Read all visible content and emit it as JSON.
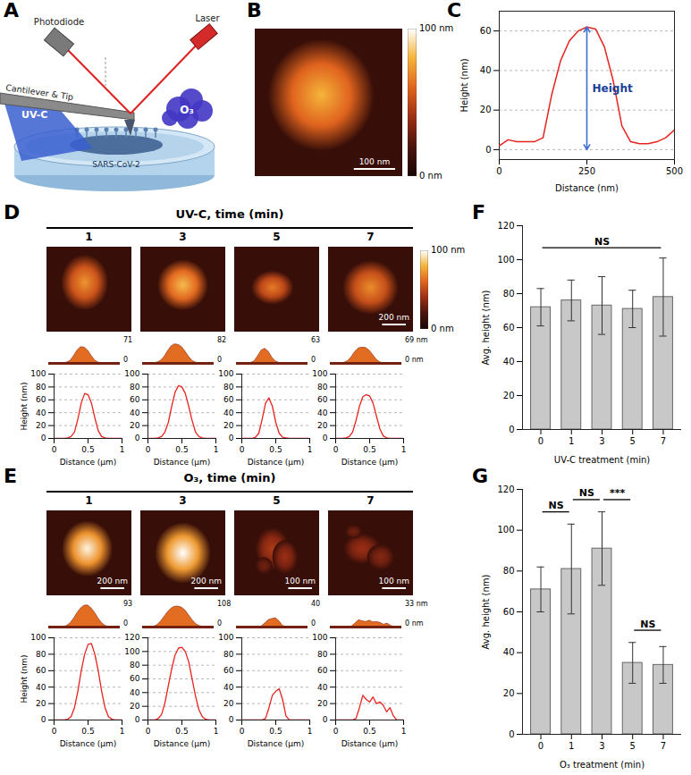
{
  "figure": {
    "panel_labels": [
      "A",
      "B",
      "C",
      "D",
      "E",
      "F",
      "G"
    ],
    "schematic": {
      "photodiode": "Photodiode",
      "laser": "Laser",
      "cantilever": "Cantilever & Tip",
      "uv": "UV-C",
      "ozone": "O₃",
      "virus": "SARS-CoV-2"
    },
    "image_B": {
      "scale_bar": "100 nm",
      "colorbar": {
        "range": [
          0,
          100
        ],
        "ticks": [
          {
            "value": 100,
            "label": "100 nm"
          },
          {
            "value": 0,
            "label": "0 nm"
          }
        ]
      }
    },
    "rows": [
      {
        "title": "UV-C, time (min)",
        "times": [
          1,
          3,
          5,
          7
        ],
        "scale_bars": [
          null,
          null,
          null,
          "200 nm"
        ],
        "z_labels": [
          [
            "71",
            "0"
          ],
          [
            "82",
            "0"
          ],
          [
            "63",
            "0"
          ],
          [
            "69 nm",
            "0 nm"
          ]
        ],
        "colorbar": {
          "range": [
            0,
            100
          ],
          "ticks": [
            {
              "value": 100,
              "label": "100 nm"
            },
            {
              "value": 0,
              "label": "0 nm"
            }
          ]
        }
      },
      {
        "title": "O₃, time (min)",
        "times": [
          1,
          3,
          5,
          7
        ],
        "scale_bars": [
          "200 nm",
          "200 nm",
          "100 nm",
          "100 nm"
        ],
        "z_labels": [
          [
            "93",
            "0"
          ],
          [
            "108",
            "0"
          ],
          [
            "40",
            "0"
          ],
          [
            "33 nm",
            "0 nm"
          ]
        ]
      }
    ]
  },
  "chart_data": [
    {
      "type": "line",
      "x_label": "Distance (nm)",
      "y_label": "Height (nm)",
      "x": [
        0,
        25,
        50,
        75,
        100,
        125,
        150,
        175,
        200,
        225,
        250,
        275,
        300,
        325,
        350,
        375,
        400,
        425,
        450,
        475,
        500
      ],
      "values": [
        2,
        5,
        4,
        4,
        4,
        6,
        28,
        45,
        55,
        60,
        62,
        61,
        52,
        35,
        12,
        4,
        3,
        3,
        4,
        6,
        10
      ],
      "color": "#e8231f",
      "xlim": [
        0,
        500
      ],
      "xticks": [
        0,
        250,
        500
      ],
      "ylim": [
        -5,
        70
      ],
      "yticks": [
        0,
        20,
        40,
        60
      ],
      "grid": true,
      "annotations": [
        {
          "text": "Height",
          "x": 250
        }
      ]
    },
    {
      "type": "line",
      "x_label": "Distance (μm)",
      "y_label": "Height (nm)",
      "x": [
        0,
        0.05,
        0.1,
        0.15,
        0.2,
        0.25,
        0.3,
        0.35,
        0.4,
        0.45,
        0.5,
        0.55,
        0.6,
        0.65,
        0.7,
        0.75,
        0.8,
        0.85,
        0.9,
        0.95,
        1
      ],
      "values": [
        0,
        0,
        0,
        0,
        1,
        3,
        10,
        30,
        55,
        70,
        68,
        55,
        32,
        12,
        3,
        1,
        0,
        0,
        0,
        0,
        0
      ],
      "color": "#e8231f",
      "xlim": [
        0,
        1
      ],
      "xticks": [
        0,
        0.5,
        1
      ],
      "ylim": [
        0,
        100
      ],
      "yticks": [
        0,
        20,
        40,
        60,
        80,
        100
      ],
      "grid": true
    },
    {
      "type": "line",
      "x_label": "Distance (μm)",
      "x": [
        0,
        0.05,
        0.1,
        0.15,
        0.2,
        0.25,
        0.3,
        0.35,
        0.4,
        0.45,
        0.5,
        0.55,
        0.6,
        0.65,
        0.7,
        0.75,
        0.8,
        0.85,
        0.9,
        0.95,
        1
      ],
      "values": [
        0,
        0,
        0,
        1,
        3,
        10,
        25,
        50,
        72,
        82,
        80,
        70,
        50,
        28,
        10,
        3,
        1,
        0,
        0,
        0,
        0
      ],
      "color": "#e8231f",
      "xlim": [
        0,
        1
      ],
      "xticks": [
        0,
        0.5,
        1
      ],
      "ylim": [
        0,
        100
      ],
      "yticks": [
        0,
        20,
        40,
        60,
        80,
        100
      ],
      "grid": true
    },
    {
      "type": "line",
      "x_label": "Distance (μm)",
      "x": [
        0,
        0.05,
        0.1,
        0.15,
        0.2,
        0.25,
        0.3,
        0.35,
        0.4,
        0.45,
        0.5,
        0.55,
        0.6,
        0.65,
        0.7,
        0.75,
        0.8,
        0.85,
        0.9,
        0.95,
        1
      ],
      "values": [
        0,
        0,
        0,
        0,
        2,
        8,
        30,
        55,
        63,
        50,
        25,
        8,
        2,
        1,
        0,
        0,
        0,
        0,
        0,
        0,
        0
      ],
      "color": "#e8231f",
      "xlim": [
        0,
        1
      ],
      "xticks": [
        0,
        0.5,
        1
      ],
      "ylim": [
        0,
        100
      ],
      "yticks": [
        0,
        20,
        40,
        60,
        80,
        100
      ],
      "grid": true
    },
    {
      "type": "line",
      "x_label": "Distance (μm)",
      "x": [
        0,
        0.05,
        0.1,
        0.15,
        0.2,
        0.25,
        0.3,
        0.35,
        0.4,
        0.45,
        0.5,
        0.55,
        0.6,
        0.65,
        0.7,
        0.75,
        0.8,
        0.85,
        0.9,
        0.95,
        1
      ],
      "values": [
        0,
        0,
        0,
        1,
        3,
        10,
        28,
        50,
        65,
        68,
        66,
        55,
        35,
        15,
        4,
        1,
        0,
        0,
        0,
        0,
        0
      ],
      "color": "#e8231f",
      "xlim": [
        0,
        1
      ],
      "xticks": [
        0,
        0.5,
        1
      ],
      "ylim": [
        0,
        100
      ],
      "yticks": [
        0,
        20,
        40,
        60,
        80,
        100
      ],
      "grid": true
    },
    {
      "type": "line",
      "x_label": "Distance (μm)",
      "y_label": "Height (nm)",
      "x": [
        0,
        0.05,
        0.1,
        0.15,
        0.2,
        0.25,
        0.3,
        0.35,
        0.4,
        0.45,
        0.5,
        0.55,
        0.6,
        0.65,
        0.7,
        0.75,
        0.8,
        0.85,
        0.9,
        0.95,
        1
      ],
      "values": [
        0,
        0,
        0,
        0,
        1,
        4,
        15,
        35,
        60,
        80,
        92,
        93,
        80,
        60,
        35,
        15,
        4,
        1,
        0,
        0,
        0
      ],
      "color": "#e8231f",
      "xlim": [
        0,
        1
      ],
      "xticks": [
        0,
        0.5,
        1
      ],
      "ylim": [
        0,
        100
      ],
      "yticks": [
        0,
        20,
        40,
        60,
        80,
        100
      ],
      "grid": true
    },
    {
      "type": "line",
      "x_label": "Distance (μm)",
      "x": [
        0,
        0.05,
        0.1,
        0.15,
        0.2,
        0.25,
        0.3,
        0.35,
        0.4,
        0.45,
        0.5,
        0.55,
        0.6,
        0.65,
        0.7,
        0.75,
        0.8,
        0.85,
        0.9,
        0.95,
        1
      ],
      "values": [
        0,
        0,
        0,
        2,
        8,
        25,
        50,
        75,
        95,
        105,
        106,
        100,
        85,
        60,
        35,
        15,
        5,
        1,
        0,
        0,
        0
      ],
      "color": "#e8231f",
      "xlim": [
        0,
        1
      ],
      "xticks": [
        0,
        0.5,
        1
      ],
      "ylim": [
        0,
        120
      ],
      "yticks": [
        0,
        20,
        40,
        60,
        80,
        100,
        120
      ],
      "grid": true
    },
    {
      "type": "line",
      "x_label": "Distance (μm)",
      "x": [
        0,
        0.05,
        0.1,
        0.15,
        0.2,
        0.25,
        0.3,
        0.35,
        0.4,
        0.45,
        0.5,
        0.55,
        0.6,
        0.65,
        0.7,
        0.75,
        0.8,
        0.85,
        0.9,
        0.95,
        1
      ],
      "values": [
        0,
        0,
        0,
        0,
        0,
        0,
        0,
        2,
        15,
        30,
        35,
        38,
        25,
        5,
        0,
        0,
        0,
        0,
        0,
        0,
        0
      ],
      "color": "#e8231f",
      "xlim": [
        0,
        1
      ],
      "xticks": [
        0,
        0.5,
        1
      ],
      "ylim": [
        0,
        100
      ],
      "yticks": [
        0,
        20,
        40,
        60,
        80,
        100
      ],
      "grid": true
    },
    {
      "type": "line",
      "x_label": "Distance (μm)",
      "x": [
        0,
        0.05,
        0.1,
        0.15,
        0.2,
        0.25,
        0.3,
        0.35,
        0.4,
        0.45,
        0.5,
        0.55,
        0.6,
        0.65,
        0.7,
        0.75,
        0.8,
        0.85,
        0.9,
        0.95,
        1
      ],
      "values": [
        0,
        0,
        0,
        0,
        0,
        0,
        2,
        15,
        30,
        25,
        22,
        28,
        20,
        22,
        18,
        10,
        15,
        5,
        0,
        0,
        0
      ],
      "color": "#e8231f",
      "xlim": [
        0,
        1
      ],
      "xticks": [
        0,
        0.5,
        1
      ],
      "ylim": [
        0,
        100
      ],
      "yticks": [
        0,
        20,
        40,
        60,
        80,
        100
      ],
      "grid": true
    },
    {
      "type": "bar",
      "x_label": "UV-C treatment (min)",
      "y_label": "Avg. height (nm)",
      "categories": [
        0,
        1,
        3,
        5,
        7
      ],
      "values": [
        72,
        76,
        73,
        71,
        78
      ],
      "errors": [
        11,
        12,
        17,
        11,
        23
      ],
      "color": "#c8c8c8",
      "ylim": [
        0,
        120
      ],
      "yticks": [
        0,
        20,
        40,
        60,
        80,
        100,
        120
      ],
      "annotations": [
        {
          "text": "NS",
          "between": [
            0,
            7
          ]
        }
      ]
    },
    {
      "type": "bar",
      "x_label": "O₃ treatment (min)",
      "y_label": "Avg. height (nm)",
      "categories": [
        0,
        1,
        3,
        5,
        7
      ],
      "values": [
        71,
        81,
        91,
        35,
        34
      ],
      "errors": [
        11,
        22,
        18,
        10,
        9
      ],
      "color": "#c8c8c8",
      "ylim": [
        0,
        120
      ],
      "yticks": [
        0,
        20,
        40,
        60,
        80,
        100,
        120
      ],
      "annotations": [
        {
          "text": "NS",
          "between": [
            0,
            1
          ]
        },
        {
          "text": "NS",
          "between": [
            1,
            3
          ]
        },
        {
          "text": "***",
          "between": [
            3,
            5
          ]
        },
        {
          "text": "NS",
          "between": [
            5,
            7
          ]
        }
      ]
    }
  ]
}
